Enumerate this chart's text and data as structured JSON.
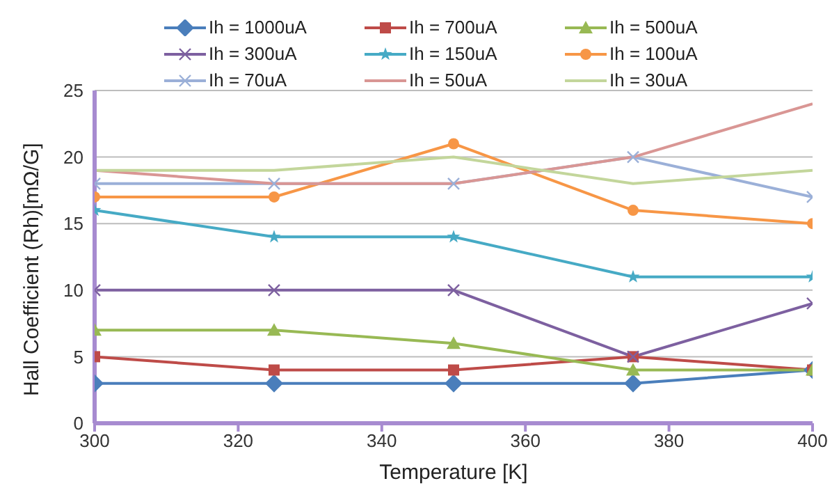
{
  "chart_data": {
    "type": "line",
    "xlabel": "Temperature [K]",
    "ylabel": "Hall Coefficient (Rh)[mΩ/G]",
    "x": [
      300,
      325,
      350,
      375,
      400
    ],
    "xlim": [
      300,
      400
    ],
    "xticks": [
      300,
      320,
      340,
      360,
      380,
      400
    ],
    "ylim": [
      0,
      25
    ],
    "yticks": [
      0,
      5,
      10,
      15,
      20,
      25
    ],
    "grid": "y",
    "legend": "top",
    "series": [
      {
        "name": "Ih = 1000uA",
        "color": "#4a7ebb",
        "marker": "diamond",
        "values": [
          3,
          3,
          3,
          3,
          4
        ]
      },
      {
        "name": "Ih = 700uA",
        "color": "#be4b48",
        "marker": "square",
        "values": [
          5,
          4,
          4,
          5,
          4
        ]
      },
      {
        "name": "Ih = 500uA",
        "color": "#98b954",
        "marker": "triangle",
        "values": [
          7,
          7,
          6,
          4,
          4
        ]
      },
      {
        "name": "Ih = 300uA",
        "color": "#7d60a0",
        "marker": "cross",
        "values": [
          10,
          10,
          10,
          5,
          9
        ]
      },
      {
        "name": "Ih = 150uA",
        "color": "#46aac5",
        "marker": "star",
        "values": [
          16,
          14,
          14,
          11,
          11
        ]
      },
      {
        "name": "Ih = 100uA",
        "color": "#f79646",
        "marker": "circle",
        "values": [
          17,
          17,
          21,
          16,
          15
        ]
      },
      {
        "name": "Ih = 70uA",
        "color": "#9bb0d8",
        "marker": "cross",
        "values": [
          18,
          18,
          18,
          20,
          17
        ]
      },
      {
        "name": "Ih = 50uA",
        "color": "#d99694",
        "marker": "none",
        "values": [
          19,
          18,
          18,
          20,
          24
        ]
      },
      {
        "name": "Ih = 30uA",
        "color": "#c3d69b",
        "marker": "none",
        "values": [
          19,
          19,
          20,
          18,
          19
        ]
      }
    ]
  }
}
